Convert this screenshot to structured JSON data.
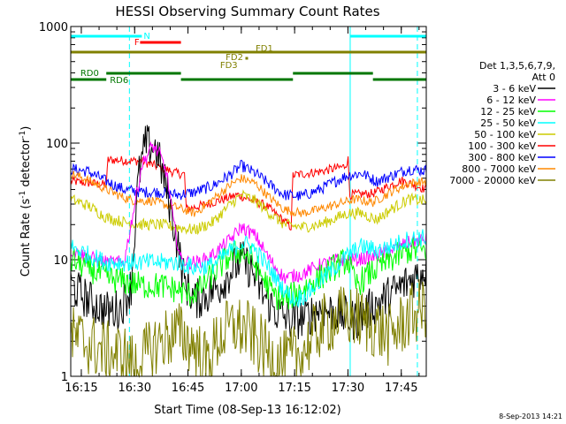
{
  "chart_data": {
    "type": "line",
    "title": "HESSI Observing Summary Count Rates",
    "xlabel": "Start Time (08-Sep-13 16:12:02)",
    "ylabel": "Count Rate (s",
    "ylabel_sup": "-1",
    "ylabel_tail": " detector",
    "ylabel_end": ")",
    "yscale": "log",
    "ylim": [
      1,
      1000
    ],
    "xlim_minutes": [
      0,
      100
    ],
    "x_ticks": [
      {
        "label": "16:15",
        "minute": 2.97
      },
      {
        "label": "16:30",
        "minute": 17.97
      },
      {
        "label": "16:45",
        "minute": 32.97
      },
      {
        "label": "17:00",
        "minute": 47.97
      },
      {
        "label": "17:15",
        "minute": 62.97
      },
      {
        "label": "17:30",
        "minute": 77.97
      },
      {
        "label": "17:45",
        "minute": 92.97
      }
    ],
    "y_ticks": [
      {
        "label": "1",
        "value": 1
      },
      {
        "label": "10",
        "value": 10
      },
      {
        "label": "100",
        "value": 100
      },
      {
        "label": "1000",
        "value": 1000
      }
    ],
    "legend": {
      "placement": "right",
      "title_lines": [
        "Det 1,3,5,6,7,9,",
        "Att 0"
      ],
      "entries": [
        {
          "label": "3 - 6 keV",
          "color": "#000000"
        },
        {
          "label": "6 - 12 keV",
          "color": "#ff00ff"
        },
        {
          "label": "12 - 25 keV",
          "color": "#00ff00"
        },
        {
          "label": "25 - 50 keV",
          "color": "#00ffff"
        },
        {
          "label": "50 - 100 keV",
          "color": "#cccc00"
        },
        {
          "label": "100 - 300 keV",
          "color": "#ff0000"
        },
        {
          "label": "300 - 800 keV",
          "color": "#0000ff"
        },
        {
          "label": "800 - 7000 keV",
          "color": "#ff8800"
        },
        {
          "label": "7000 - 20000 keV",
          "color": "#808000"
        }
      ]
    },
    "series": [
      {
        "name": "100 - 300 keV",
        "color": "#ff0000",
        "x": [
          0,
          10,
          10.5,
          20,
          30,
          32,
          32.5,
          40,
          47,
          55,
          62,
          62.5,
          70,
          77,
          78,
          78.5,
          85,
          93,
          100
        ],
        "y": [
          47,
          44,
          72,
          70,
          55,
          54,
          27,
          31,
          36,
          29,
          19,
          53,
          57,
          63,
          72,
          36,
          37,
          48,
          40
        ]
      },
      {
        "name": "300 - 800 keV",
        "color": "#0000ff",
        "x": [
          0,
          5,
          10,
          15,
          20,
          25,
          30,
          35,
          40,
          45,
          48,
          52,
          56,
          60,
          65,
          70,
          75,
          78,
          82,
          86,
          90,
          95,
          100
        ],
        "y": [
          60,
          57,
          47,
          40,
          38,
          38,
          36,
          38,
          43,
          54,
          64,
          55,
          44,
          36,
          35,
          40,
          48,
          53,
          55,
          47,
          52,
          60,
          58
        ]
      },
      {
        "name": "800 - 7000 keV",
        "color": "#ff8800",
        "x": [
          0,
          5,
          10,
          15,
          18,
          20,
          23,
          26,
          30,
          35,
          40,
          45,
          48,
          52,
          56,
          60,
          65,
          70,
          75,
          80,
          85,
          90,
          95,
          100
        ],
        "y": [
          55,
          48,
          40,
          34,
          32,
          32,
          32,
          30,
          28,
          25,
          33,
          44,
          50,
          45,
          34,
          27,
          25,
          27,
          30,
          33,
          31,
          38,
          45,
          47
        ]
      },
      {
        "name": "50 - 100 keV",
        "color": "#cccc00",
        "x": [
          0,
          5,
          10,
          15,
          20,
          25,
          30,
          35,
          40,
          45,
          48,
          52,
          56,
          60,
          65,
          70,
          75,
          78,
          82,
          86,
          90,
          95,
          100
        ],
        "y": [
          33,
          29,
          23,
          21,
          20,
          20,
          19,
          18,
          21,
          30,
          36,
          32,
          25,
          20,
          19,
          20,
          23,
          25,
          25,
          22,
          27,
          33,
          32
        ]
      },
      {
        "name": "3 - 6 keV",
        "color": "#000000",
        "x": [
          0,
          5,
          10,
          14,
          17,
          19,
          21,
          24,
          27,
          30,
          32,
          35,
          38,
          42,
          45,
          48,
          51,
          54,
          58,
          62,
          66,
          70,
          75,
          80,
          85,
          90,
          95,
          100
        ],
        "y": [
          6,
          4.5,
          3.6,
          3.8,
          6,
          50,
          98,
          90,
          40,
          14,
          6.5,
          4.5,
          5,
          6,
          8,
          10,
          8,
          5,
          3.5,
          3,
          3.2,
          3.8,
          3.5,
          3,
          4,
          5,
          6.5,
          8.5
        ]
      },
      {
        "name": "6 - 12 keV",
        "color": "#ff00ff",
        "x": [
          0,
          5,
          10,
          15,
          18,
          20,
          23,
          25,
          27,
          29,
          31,
          33,
          36,
          40,
          45,
          48,
          52,
          56,
          60,
          65,
          70,
          75,
          80,
          85,
          90,
          95,
          100
        ],
        "y": [
          12,
          10.5,
          9.5,
          9.5,
          30,
          65,
          95,
          80,
          55,
          20,
          10,
          9.5,
          9.5,
          11,
          15,
          19,
          16,
          10,
          7,
          7.5,
          9,
          10,
          10,
          10.5,
          12,
          14,
          15
        ]
      },
      {
        "name": "12 - 25 keV",
        "color": "#00ff00",
        "x": [
          0,
          5,
          10,
          15,
          20,
          25,
          30,
          33,
          36,
          40,
          45,
          48,
          51,
          54,
          57,
          60,
          65,
          70,
          75,
          78,
          80,
          85,
          90,
          95,
          100
        ],
        "y": [
          10,
          8.5,
          7,
          6.5,
          6,
          6,
          5.5,
          5,
          5.5,
          7.5,
          11,
          12,
          10,
          7,
          5,
          4.5,
          5.5,
          7,
          9,
          10,
          6,
          8,
          10,
          12,
          12
        ]
      },
      {
        "name": "25 - 50 keV",
        "color": "#00ffff",
        "x": [
          0,
          5,
          10,
          15,
          20,
          25,
          30,
          35,
          40,
          45,
          48,
          51,
          54,
          57,
          60,
          63,
          66,
          70,
          75,
          78,
          82,
          86,
          90,
          95,
          100
        ],
        "y": [
          13,
          11,
          9.5,
          9.5,
          9.5,
          9.5,
          9.5,
          8.5,
          9,
          12,
          14,
          13,
          10,
          7.5,
          5.5,
          4.5,
          5,
          6.5,
          9,
          11,
          13,
          12,
          13,
          15,
          15.5
        ]
      },
      {
        "name": "7000 - 20000 keV",
        "color": "#808000",
        "x": [
          0,
          5,
          10,
          15,
          18,
          20,
          25,
          30,
          35,
          38,
          42,
          46,
          50,
          55,
          60,
          65,
          70,
          75,
          80,
          85,
          90,
          95,
          100
        ],
        "y": [
          2.2,
          1.9,
          1.6,
          1.5,
          1.2,
          1.4,
          2,
          2.4,
          1.8,
          1.3,
          2.2,
          2.7,
          2.4,
          1.6,
          1.3,
          1.6,
          2.6,
          3.2,
          3.2,
          2.7,
          2.2,
          3.2,
          4
        ]
      }
    ],
    "annotations": [
      {
        "label": "N",
        "color": "#00ffff",
        "bars": [
          [
            0,
            20
          ],
          [
            78.6,
            100
          ]
        ]
      },
      {
        "label": "F",
        "color": "#ff0000",
        "bars": [
          [
            19.5,
            31
          ]
        ]
      },
      {
        "label": "FD1",
        "color": "#808000",
        "bars": [
          [
            0,
            100
          ]
        ]
      },
      {
        "label": "FD2",
        "color": "#808000",
        "dot": 49.5
      },
      {
        "label": "FD3",
        "color": "#808000"
      },
      {
        "label": "RD0",
        "color": "#007700",
        "bars": [
          [
            10,
            31
          ]
        ]
      },
      {
        "label": "RD6",
        "color": "#007700",
        "bars": [
          [
            0,
            10
          ],
          [
            31,
            62.5
          ],
          [
            85,
            100
          ]
        ]
      },
      {
        "label": "RD0",
        "color": "#007700",
        "bars": [
          [
            62.5,
            85
          ]
        ]
      }
    ],
    "vertical_markers": [
      {
        "minute": 16.5,
        "style": "dashed",
        "color": "#00ffff"
      },
      {
        "minute": 78.6,
        "style": "solid",
        "color": "#00ffff"
      },
      {
        "minute": 97.5,
        "style": "dashed",
        "color": "#00ffff"
      }
    ],
    "footer_stamp": "8-Sep-2013 14:21"
  }
}
